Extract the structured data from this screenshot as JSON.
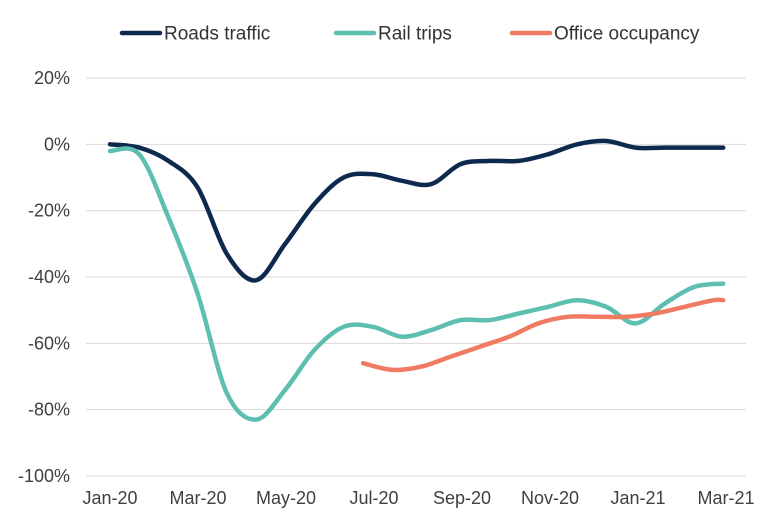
{
  "chart_data": {
    "type": "line",
    "title": "",
    "xlabel": "",
    "ylabel": "",
    "x_tick_labels": [
      "Jan-20",
      "Mar-20",
      "May-20",
      "Jul-20",
      "Sep-20",
      "Nov-20",
      "Jan-21",
      "Mar-21"
    ],
    "y_tick_labels": [
      "20%",
      "0%",
      "-20%",
      "-40%",
      "-60%",
      "-80%",
      "-100%"
    ],
    "y_ticks": [
      20,
      0,
      -20,
      -40,
      -60,
      -80,
      -100
    ],
    "ylim": [
      -100,
      20
    ],
    "y_unit": "%",
    "grid": "horizontal",
    "legend_position": "top",
    "series": [
      {
        "name": "Roads traffic",
        "color": "#0d2a4e",
        "points": [
          [
            "2020-01-01",
            0
          ],
          [
            "2020-01-22",
            -1
          ],
          [
            "2020-02-12",
            -5
          ],
          [
            "2020-03-04",
            -13
          ],
          [
            "2020-03-25",
            -33
          ],
          [
            "2020-04-15",
            -41
          ],
          [
            "2020-05-06",
            -30
          ],
          [
            "2020-05-27",
            -18
          ],
          [
            "2020-06-17",
            -10
          ],
          [
            "2020-07-08",
            -9
          ],
          [
            "2020-07-29",
            -11
          ],
          [
            "2020-08-19",
            -12
          ],
          [
            "2020-09-09",
            -6
          ],
          [
            "2020-09-30",
            -5
          ],
          [
            "2020-10-21",
            -5
          ],
          [
            "2020-11-11",
            -3
          ],
          [
            "2020-12-02",
            0
          ],
          [
            "2020-12-23",
            1
          ],
          [
            "2021-01-13",
            -1
          ],
          [
            "2021-02-03",
            -1
          ],
          [
            "2021-02-24",
            -1
          ],
          [
            "2021-03-17",
            -1
          ]
        ]
      },
      {
        "name": "Rail trips",
        "color": "#5ebfb0",
        "points": [
          [
            "2020-01-01",
            -2
          ],
          [
            "2020-01-22",
            -3
          ],
          [
            "2020-02-12",
            -22
          ],
          [
            "2020-03-04",
            -45
          ],
          [
            "2020-03-25",
            -75
          ],
          [
            "2020-04-15",
            -83
          ],
          [
            "2020-05-06",
            -74
          ],
          [
            "2020-05-27",
            -62
          ],
          [
            "2020-06-17",
            -55
          ],
          [
            "2020-07-08",
            -55
          ],
          [
            "2020-07-29",
            -58
          ],
          [
            "2020-08-19",
            -56
          ],
          [
            "2020-09-09",
            -53
          ],
          [
            "2020-09-30",
            -53
          ],
          [
            "2020-10-21",
            -51
          ],
          [
            "2020-11-11",
            -49
          ],
          [
            "2020-12-02",
            -47
          ],
          [
            "2020-12-23",
            -49
          ],
          [
            "2021-01-13",
            -54
          ],
          [
            "2021-02-03",
            -48
          ],
          [
            "2021-02-24",
            -43
          ],
          [
            "2021-03-17",
            -42
          ]
        ]
      },
      {
        "name": "Office occupancy",
        "color": "#ef7b63",
        "points": [
          [
            "2020-07-01",
            -66
          ],
          [
            "2020-07-22",
            -68
          ],
          [
            "2020-08-12",
            -67
          ],
          [
            "2020-09-02",
            -64
          ],
          [
            "2020-09-23",
            -61
          ],
          [
            "2020-10-14",
            -58
          ],
          [
            "2020-11-04",
            -54
          ],
          [
            "2020-11-25",
            -52
          ],
          [
            "2020-12-16",
            -52
          ],
          [
            "2021-01-06",
            -52
          ],
          [
            "2021-01-27",
            -51
          ],
          [
            "2021-02-17",
            -49
          ],
          [
            "2021-03-10",
            -47
          ],
          [
            "2021-03-17",
            -47
          ]
        ]
      }
    ]
  }
}
